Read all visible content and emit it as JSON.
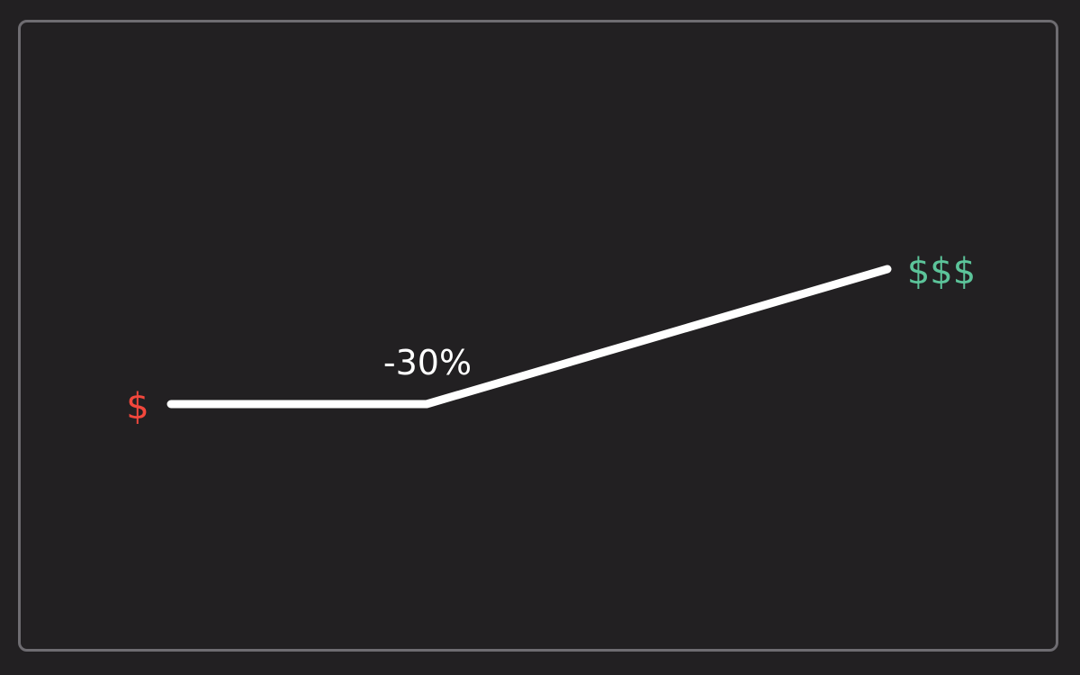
{
  "diagram": {
    "start_label": "$",
    "pivot_label": "-30%",
    "end_label": "$$$",
    "colors": {
      "background": "#222022",
      "frame": "#6e6c71",
      "line": "#ffffff",
      "start": "#f2473c",
      "pivot": "#ffffff",
      "end": "#5cc49a"
    }
  }
}
